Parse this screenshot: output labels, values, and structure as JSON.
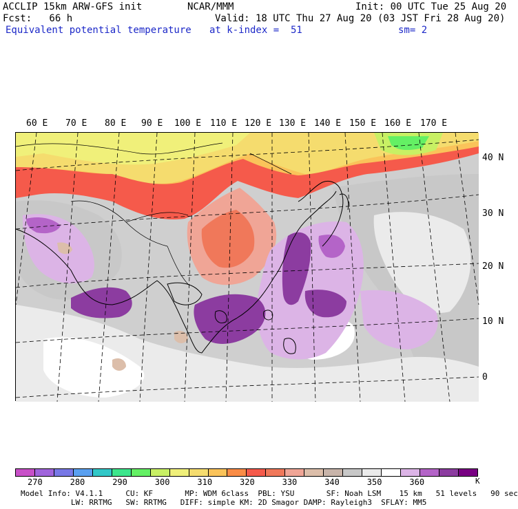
{
  "header": {
    "model_line": "ACCLIP 15km ARW-GFS init",
    "org": "NCAR/MMM",
    "init": "Init: 00 UTC Tue 25 Aug 20",
    "fcst": "Fcst:   66 h",
    "valid": "Valid: 18 UTC Thu 27 Aug 20 (03 JST Fri 28 Aug 20)",
    "field": "Equivalent potential temperature",
    "level": "at k-index =  51",
    "smooth": "sm= 2"
  },
  "map": {
    "lon_labels": [
      "60 E",
      "70 E",
      "80 E",
      "90 E",
      "100 E",
      "110 E",
      "120 E",
      "130 E",
      "140 E",
      "150 E",
      "160 E",
      "170 E"
    ],
    "lat_labels": [
      "40 N",
      "30 N",
      "20 N",
      "10 N",
      "0"
    ]
  },
  "colorbar": {
    "colors": [
      "#c850c8",
      "#a064dc",
      "#7878e6",
      "#5aa0f0",
      "#32c8c8",
      "#3ce68c",
      "#64f064",
      "#c8f064",
      "#f0f07a",
      "#f5dc6e",
      "#fac35a",
      "#fa8c46",
      "#f55a4b",
      "#f0785a",
      "#f0a596",
      "#dcbeaa",
      "#c8b4aa",
      "#c8c8c8",
      "#ebebeb",
      "#ffffff",
      "#dcb4e6",
      "#b464c8",
      "#8c3ca0",
      "#780082"
    ],
    "labels": [
      "270",
      "280",
      "290",
      "300",
      "310",
      "320",
      "330",
      "340",
      "350",
      "360"
    ],
    "unit": "K"
  },
  "footer": {
    "line1": "Model Info: V4.1.1     CU: KF       MP: WDM 6class  PBL: YSU       SF: Noah LSM    15 km   51 levels   90 sec",
    "line2": "           LW: RRTMG   SW: RRTMG   DIFF: simple KM: 2D Smagor DAMP: Rayleigh3  SFLAY: MM5"
  }
}
